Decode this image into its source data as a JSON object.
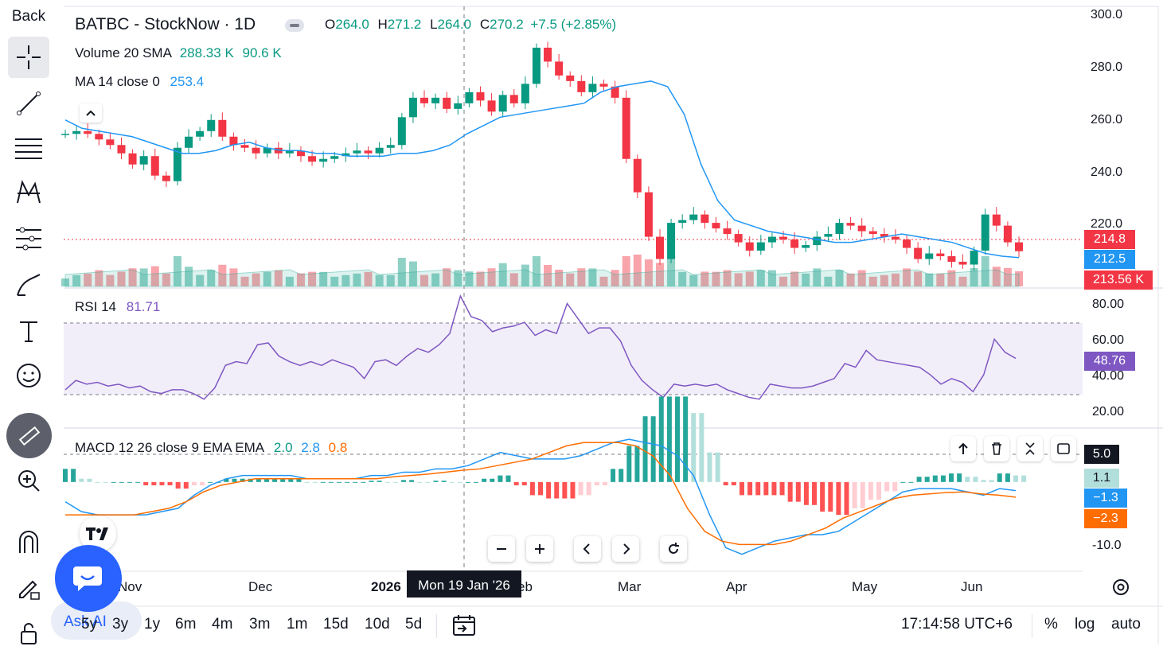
{
  "header": {
    "symbol": "BATBC - StockNow · 1D",
    "o_label": "O",
    "o_value": "264.0",
    "h_label": "H",
    "h_value": "271.2",
    "l_label": "L",
    "l_value": "264.0",
    "c_label": "C",
    "c_value": "270.2",
    "change": "+7.5 (+2.85%)"
  },
  "toolbar": {
    "back_label": "Back"
  },
  "indicators": {
    "volume_label": "Volume",
    "volume_params": "20 SMA",
    "volume_v1": "288.33 K",
    "volume_v2": "90.6 K",
    "ma_label": "MA",
    "ma_params": "14 close 0",
    "ma_value": "253.4",
    "rsi_label": "RSI",
    "rsi_params": "14",
    "rsi_value": "81.71",
    "macd_label": "MACD",
    "macd_params": "12 26 close 9 EMA EMA",
    "macd_v1": "2.0",
    "macd_v2": "2.8",
    "macd_v3": "0.8"
  },
  "price_axis": [
    "300.0",
    "280.0",
    "260.0",
    "240.0",
    "220.0"
  ],
  "rsi_axis": [
    "80.00",
    "60.00",
    "40.00",
    "20.00"
  ],
  "macd_axis": [
    "5.0",
    "1.1",
    "-1.3",
    "-2.3",
    "-10.0"
  ],
  "badges": {
    "price": "214.8",
    "ma": "212.5",
    "volume": "213.56 K",
    "rsi": "48.76",
    "macd_top": "5.0",
    "macd_hist": "1.1",
    "macd_line": "−1.3",
    "macd_signal": "−2.3"
  },
  "time_axis": [
    "Nov",
    "Dec",
    "2026",
    "eb",
    "Mar",
    "Apr",
    "May",
    "Jun"
  ],
  "crosshair_label": "Mon 19 Jan '26",
  "timeframes": [
    "5y",
    "3y",
    "1y",
    "6m",
    "4m",
    "3m",
    "1m",
    "15d",
    "10d",
    "5d"
  ],
  "ask_ai": "Ask AI",
  "clock": "17:14:58 UTC+6",
  "scale_opts": [
    "%",
    "log",
    "auto"
  ],
  "colors": {
    "up": "#089981",
    "down": "#f23645",
    "ma": "#2196f3",
    "rsi": "#7e57c2",
    "macd": "#2196f3",
    "signal": "#ff6d00"
  },
  "chart_data": [
    {
      "type": "candlestick",
      "title": "BATBC - StockNow · 1D",
      "ylim": [
        205,
        300
      ],
      "x": [
        "Nov",
        "Dec",
        "2026",
        "Feb",
        "Mar",
        "Apr",
        "May",
        "Jun"
      ],
      "close_path": [
        257,
        258,
        257,
        255,
        253,
        250,
        246,
        249,
        242,
        240,
        252,
        256,
        258,
        262,
        256,
        253,
        252,
        250,
        252,
        250,
        251,
        249,
        247,
        248,
        249,
        250,
        251,
        250,
        252,
        253,
        263,
        270,
        268,
        270,
        266,
        268,
        272,
        269,
        265,
        271,
        268,
        275,
        288,
        283,
        278,
        276,
        272,
        275,
        274,
        270,
        248,
        236,
        220,
        212,
        225,
        226,
        228,
        225,
        223,
        221,
        218,
        215,
        218,
        220,
        219,
        216,
        217,
        220,
        221,
        225,
        224,
        222,
        221,
        220,
        219,
        216,
        212,
        214,
        213,
        211,
        210,
        215,
        228,
        224,
        218,
        214.8
      ],
      "ma14": [
        262,
        259,
        258,
        257,
        256,
        254,
        252,
        250,
        250,
        251,
        253,
        254,
        252,
        251,
        251,
        250,
        250,
        249,
        249,
        249,
        250,
        250,
        251,
        253,
        257,
        260,
        263,
        264,
        265,
        266,
        267,
        268,
        272,
        274,
        275,
        276,
        274,
        264,
        246,
        233,
        226,
        224,
        222,
        221,
        220,
        219,
        218,
        218,
        219,
        220,
        221,
        220,
        219,
        218,
        216,
        214,
        213,
        212.5
      ],
      "last_price": 214.8
    },
    {
      "type": "line",
      "title": "RSI 14",
      "ylim": [
        15,
        85
      ],
      "bands": [
        70,
        30
      ],
      "values": [
        32,
        37,
        35,
        36,
        34,
        35,
        33,
        34,
        31,
        30,
        32,
        32,
        30,
        27,
        33,
        45,
        47,
        46,
        56,
        57,
        50,
        47,
        45,
        47,
        45,
        48,
        46,
        44,
        38,
        47,
        48,
        45,
        50,
        54,
        52,
        56,
        62,
        82,
        71,
        69,
        63,
        65,
        66,
        68,
        61,
        64,
        62,
        78,
        70,
        62,
        65,
        65,
        58,
        45,
        37,
        32,
        28,
        35,
        34,
        35,
        34,
        35,
        32,
        30,
        28,
        27,
        35,
        34,
        33,
        33,
        34,
        36,
        38,
        46,
        44,
        53,
        48,
        47,
        46,
        45,
        44,
        40,
        35,
        38,
        36,
        31,
        40,
        59,
        52,
        48.76
      ],
      "last": 48.76
    },
    {
      "type": "line",
      "title": "MACD 12 26 close 9 EMA EMA",
      "ylim": [
        -12,
        7
      ],
      "macd": [
        -3,
        -4.5,
        -5,
        -5,
        -5,
        -5,
        -4.5,
        -4,
        -2,
        -0.5,
        0.5,
        1,
        1,
        1,
        1,
        0.5,
        0.5,
        0.5,
        0.5,
        1,
        1,
        1.5,
        1.5,
        2,
        2,
        2.5,
        3.5,
        4.5,
        4,
        3.5,
        3.5,
        3.5,
        4,
        5,
        6,
        6.5,
        6,
        5.5,
        4,
        1,
        -5,
        -10,
        -11,
        -10,
        -9,
        -8.5,
        -8,
        -8,
        -7.5,
        -6,
        -4.5,
        -3,
        -1.5,
        -1,
        -1,
        -1,
        -1.5,
        -2,
        -1,
        -1.3
      ],
      "signal": [
        -5,
        -5,
        -5,
        -5,
        -5,
        -4.5,
        -4,
        -3,
        -1.5,
        -0.5,
        0,
        0.5,
        0.5,
        0.5,
        0.5,
        0.5,
        0.5,
        0.5,
        0.5,
        0.8,
        1,
        1.2,
        1.5,
        1.8,
        2,
        2.5,
        3,
        3.5,
        4.5,
        5.5,
        6,
        6,
        6,
        5.5,
        4,
        1,
        -4,
        -7.5,
        -9,
        -9.5,
        -9.5,
        -9.5,
        -9,
        -8,
        -7,
        -5.5,
        -4.5,
        -3.5,
        -2.5,
        -2,
        -1.8,
        -1.6,
        -1.5,
        -1.8,
        -2,
        -2.3
      ],
      "last_macd": -1.3,
      "last_signal": -2.3,
      "last_hist": 1.1
    }
  ]
}
